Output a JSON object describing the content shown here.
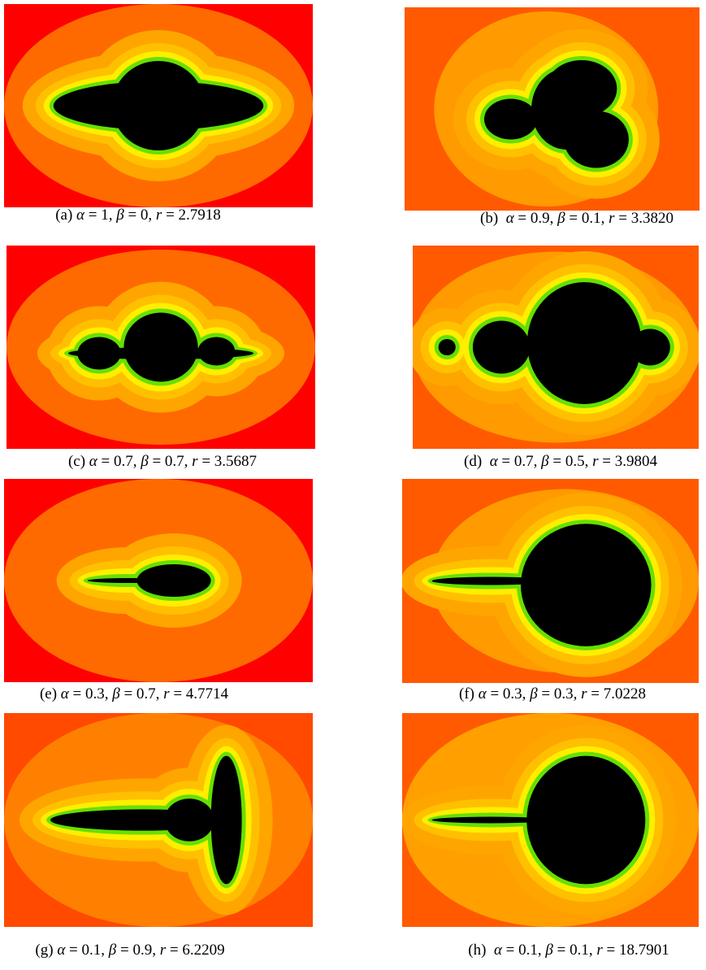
{
  "figure": {
    "panels": [
      {
        "caption": [
          "(a) ",
          "α",
          " = 1, ",
          "β",
          " = 0, ",
          "r",
          " = 2.7918"
        ]
      },
      {
        "caption": [
          "(b)  ",
          "α",
          " = 0.9, ",
          "β",
          " = 0.1, ",
          "r",
          " = 3.3820"
        ]
      },
      {
        "caption": [
          "(c) ",
          "α",
          " = 0.7, ",
          "β",
          " = 0.7, ",
          "r",
          " = 3.5687"
        ]
      },
      {
        "caption": [
          "(d)  ",
          "α",
          " = 0.7, ",
          "β",
          " = 0.5, ",
          "r",
          " = 3.9804"
        ]
      },
      {
        "caption": [
          "(e) ",
          "α",
          " = 0.3, ",
          "β",
          " = 0.7, ",
          "r",
          " = 4.7714"
        ]
      },
      {
        "caption": [
          "(f) ",
          "α",
          " = 0.3, ",
          "β",
          " = 0.3, ",
          "r",
          " = 7.0228"
        ]
      },
      {
        "caption": [
          "(g) ",
          "α",
          " = 0.1, ",
          "β",
          " = 0.9, ",
          "r",
          " = 6.2209"
        ]
      },
      {
        "caption": [
          "(h)  ",
          "α",
          " = 0.1, ",
          "β",
          " = 0.1, ",
          "r",
          " = 18.7901"
        ]
      }
    ]
  }
}
